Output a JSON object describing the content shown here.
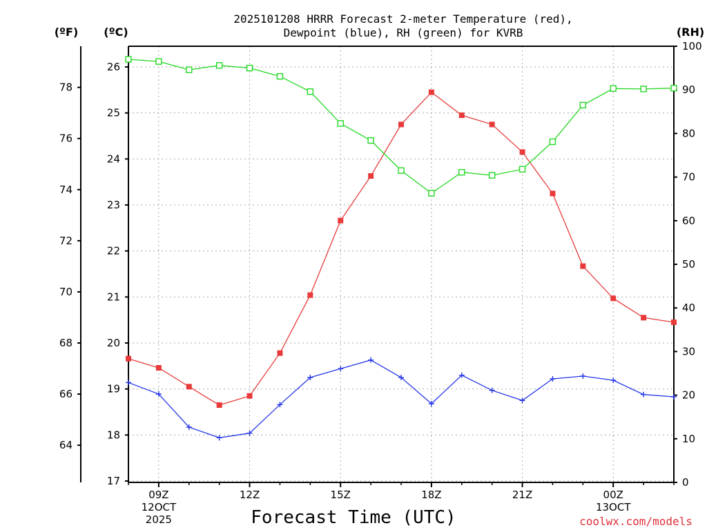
{
  "chart_data": {
    "type": "line",
    "title_lines": [
      "2025101208 HRRR Forecast 2-meter Temperature (red),",
      "Dewpoint (blue), RH (green) for KVRB"
    ],
    "xlabel": "Forecast Time (UTC)",
    "credit": "coolwx.com/models",
    "x_hours": [
      8,
      9,
      10,
      11,
      12,
      13,
      14,
      15,
      16,
      17,
      18,
      19,
      20,
      21,
      22,
      23,
      24,
      25,
      26
    ],
    "x_range": [
      8,
      26
    ],
    "x_ticks": [
      {
        "hour": 9,
        "label": "09Z",
        "sub": [
          "12OCT",
          "2025"
        ]
      },
      {
        "hour": 12,
        "label": "12Z",
        "sub": []
      },
      {
        "hour": 15,
        "label": "15Z",
        "sub": []
      },
      {
        "hour": 18,
        "label": "18Z",
        "sub": []
      },
      {
        "hour": 21,
        "label": "21Z",
        "sub": []
      },
      {
        "hour": 24,
        "label": "00Z",
        "sub": [
          "13OCT"
        ]
      }
    ],
    "axes": {
      "celsius": {
        "unit_label": "(ºC)",
        "range": [
          16.97,
          26.45
        ],
        "ticks": [
          17,
          18,
          19,
          20,
          21,
          22,
          23,
          24,
          25,
          26
        ]
      },
      "fahrenheit": {
        "unit_label": "(ºF)",
        "ticks": [
          64,
          66,
          68,
          70,
          72,
          74,
          76,
          78
        ]
      },
      "rh": {
        "unit_label": "(RH)",
        "range": [
          0,
          100
        ],
        "ticks": [
          0,
          10,
          20,
          30,
          40,
          50,
          60,
          70,
          80,
          90,
          100
        ]
      }
    },
    "series": [
      {
        "name": "Temperature",
        "axis": "celsius",
        "color": "#e83a3a",
        "marker": "filled-square",
        "values": [
          19.66,
          19.46,
          19.05,
          18.65,
          18.85,
          19.78,
          21.04,
          22.66,
          23.63,
          24.75,
          25.45,
          24.95,
          24.75,
          24.15,
          23.25,
          21.67,
          20.97,
          20.55,
          20.45
        ]
      },
      {
        "name": "Dewpoint",
        "axis": "celsius",
        "color": "#2436e8",
        "marker": "plus",
        "values": [
          19.14,
          18.89,
          18.17,
          17.94,
          18.04,
          18.66,
          19.25,
          19.44,
          19.63,
          19.25,
          18.68,
          19.3,
          18.97,
          18.75,
          19.22,
          19.28,
          19.19,
          18.88,
          18.83
        ]
      },
      {
        "name": "RH",
        "axis": "rh",
        "color": "#22d822",
        "marker": "open-square",
        "values": [
          97,
          96.5,
          94.6,
          95.6,
          95,
          93.1,
          89.6,
          82.3,
          78.4,
          71.5,
          66.3,
          71.1,
          70.4,
          71.8,
          78.1,
          86.5,
          90.3,
          90.2,
          90.4
        ]
      }
    ]
  }
}
